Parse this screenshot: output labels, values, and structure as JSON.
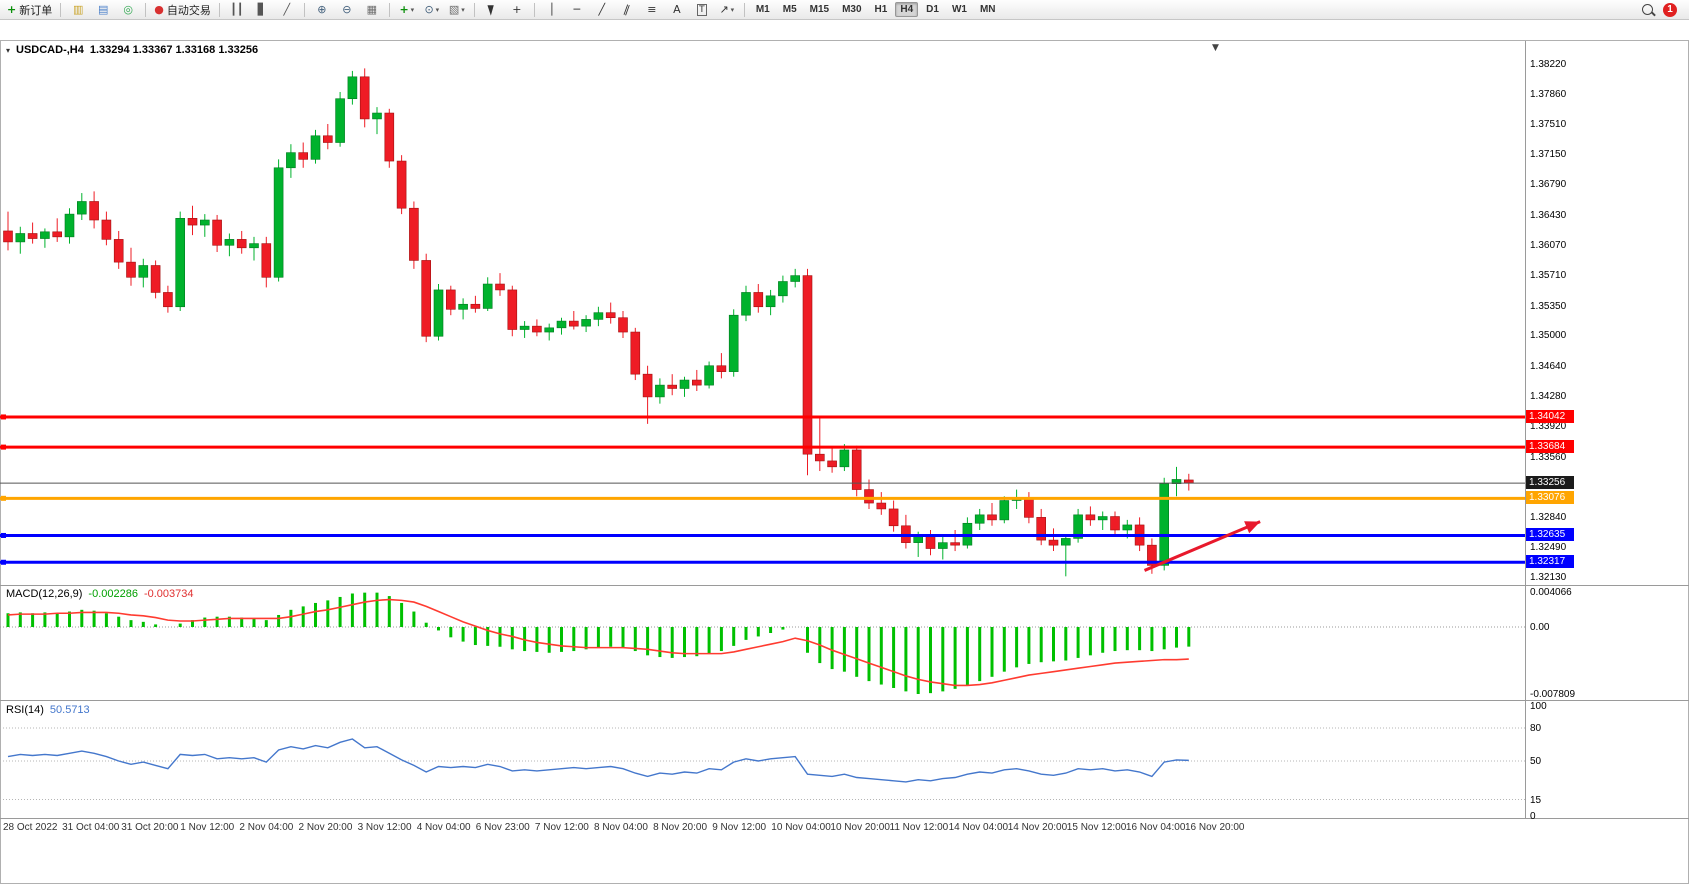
{
  "toolbar": {
    "groups": [
      [
        {
          "name": "new-order-button",
          "glyph": "+",
          "glyph_color": "#0a8f0a",
          "bold": true,
          "label": "新订单"
        }
      ],
      [
        {
          "name": "new-chart-icon",
          "glyph": "▥",
          "glyph_color": "#c9a227"
        },
        {
          "name": "profiles-icon",
          "glyph": "▤",
          "glyph_color": "#4a7fc9"
        },
        {
          "name": "market-watch-icon",
          "glyph": "◎",
          "glyph_color": "#2fa84f"
        }
      ],
      [
        {
          "name": "auto-trading-button",
          "glyph": "●",
          "glyph_color": "#d83030",
          "label": "自动交易"
        }
      ],
      [
        {
          "name": "bar-chart-type-icon",
          "glyph": "┃┃",
          "glyph_color": "#555555"
        },
        {
          "name": "candlestick-type-icon",
          "glyph": "▋",
          "glyph_color": "#555555"
        },
        {
          "name": "line-chart-type-icon",
          "glyph": "╱",
          "glyph_color": "#555555"
        }
      ],
      [
        {
          "name": "zoom-in-icon",
          "glyph": "⊕",
          "glyph_color": "#44617d"
        },
        {
          "name": "zoom-out-icon",
          "glyph": "⊖",
          "glyph_color": "#44617d"
        },
        {
          "name": "tile-windows-icon",
          "glyph": "▦",
          "glyph_color": "#6d6d6d"
        }
      ],
      [
        {
          "name": "indicators-icon",
          "glyph": "+",
          "glyph_color": "#0a8f0a",
          "bold": true,
          "caret": true
        },
        {
          "name": "periods-icon",
          "glyph": "⊙",
          "glyph_color": "#44617d",
          "caret": true
        },
        {
          "name": "templates-icon",
          "glyph": "▧",
          "glyph_color": "#6d6d6d",
          "caret": true
        }
      ],
      [
        {
          "name": "cursor-icon",
          "type": "cursor"
        },
        {
          "name": "crosshair-icon",
          "glyph": "+",
          "glyph_color": "#333333"
        }
      ],
      [
        {
          "name": "vertical-line-icon",
          "glyph": "│",
          "glyph_color": "#333333"
        },
        {
          "name": "horizontal-line-icon",
          "glyph": "─",
          "glyph_color": "#333333"
        },
        {
          "name": "trendline-icon",
          "glyph": "╱",
          "glyph_color": "#333333"
        },
        {
          "name": "channel-icon",
          "glyph": "∥",
          "glyph_color": "#333333",
          "tilt": true
        },
        {
          "name": "fibonacci-icon",
          "glyph": "≡",
          "glyph_color": "#333333"
        },
        {
          "name": "text-icon",
          "glyph": "A",
          "glyph_color": "#333333"
        },
        {
          "name": "text-label-icon",
          "glyph": "T",
          "glyph_color": "#333333",
          "boxed": true
        },
        {
          "name": "arrows-icon",
          "glyph": "↗",
          "glyph_color": "#333333",
          "caret": true
        }
      ]
    ],
    "timeframes": {
      "items": [
        "M1",
        "M5",
        "M15",
        "M30",
        "H1",
        "H4",
        "D1",
        "W1",
        "MN"
      ],
      "active": "H4"
    },
    "notification_badge": "1"
  },
  "chart": {
    "symbol_title": "USDCAD-,H4",
    "ohlc_values": "1.33294 1.33367 1.33168 1.33256",
    "shift_marker": "▼",
    "price_ticks": [
      "1.38220",
      "1.37860",
      "1.37510",
      "1.37150",
      "1.36790",
      "1.36430",
      "1.36070",
      "1.35710",
      "1.35350",
      "1.35000",
      "1.34640",
      "1.34280",
      "1.33920",
      "1.33560",
      "1.32840",
      "1.32490",
      "1.32130"
    ],
    "hlines": [
      {
        "label": "1.34042",
        "value": 1.34042,
        "color": "#ff0000",
        "width": 3,
        "handle": true
      },
      {
        "label": "1.33684",
        "value": 1.33684,
        "color": "#ff0000",
        "width": 3,
        "handle": true
      },
      {
        "label": "1.33256",
        "value": 1.33256,
        "color": "#555555",
        "width": 1,
        "bg": "#1b1b1b",
        "handle": false
      },
      {
        "label": "1.33076",
        "value": 1.33076,
        "color": "#ffa500",
        "width": 3,
        "handle": true
      },
      {
        "label": "1.32635",
        "value": 1.32635,
        "color": "#0000ff",
        "width": 3,
        "handle": true
      },
      {
        "label": "1.32317",
        "value": 1.32317,
        "color": "#0000ff",
        "width": 3,
        "handle": true
      }
    ],
    "arrow": {
      "x1_index": 92.4,
      "price1": 1.3222,
      "x2_index": 101.8,
      "price2": 1.328,
      "color": "#e8192c"
    },
    "time_labels": [
      "28 Oct 2022",
      "31 Oct 04:00",
      "31 Oct 20:00",
      "1 Nov 12:00",
      "2 Nov 04:00",
      "2 Nov 20:00",
      "3 Nov 12:00",
      "4 Nov 04:00",
      "6 Nov 23:00",
      "7 Nov 12:00",
      "8 Nov 04:00",
      "8 Nov 20:00",
      "9 Nov 12:00",
      "10 Nov 04:00",
      "10 Nov 20:00",
      "11 Nov 12:00",
      "14 Nov 04:00",
      "14 Nov 20:00",
      "15 Nov 12:00",
      "16 Nov 04:00",
      "16 Nov 20:00"
    ]
  },
  "macd": {
    "label": "MACD(12,26,9)",
    "value_main": "-0.002286",
    "value_signal": "-0.003734",
    "value_main_color": "#00a000",
    "value_signal_color": "#e03030",
    "axis": [
      "0.004066",
      "0.00",
      "-0.007809"
    ]
  },
  "rsi": {
    "label": "RSI(14)",
    "value": "50.5713",
    "value_color": "#4477cc",
    "levels": [
      100,
      80,
      50,
      15,
      0
    ]
  },
  "colors": {
    "bull": "#00b22d",
    "bear": "#ee1c25",
    "bull_edge": "#007a1f",
    "bear_edge": "#a01010",
    "macd_hist": "#00c000",
    "macd_signal": "#ff3b30",
    "rsi_line": "#4477cc"
  },
  "chart_data": [
    {
      "type": "candlestick",
      "name": "USDCAD H4",
      "ohlc": [
        [
          1.3625,
          1.3648,
          1.3602,
          1.3612
        ],
        [
          1.3612,
          1.363,
          1.3598,
          1.3622
        ],
        [
          1.3622,
          1.3635,
          1.361,
          1.3616
        ],
        [
          1.3616,
          1.3628,
          1.3605,
          1.3624
        ],
        [
          1.3624,
          1.364,
          1.3612,
          1.3618
        ],
        [
          1.3618,
          1.3652,
          1.361,
          1.3645
        ],
        [
          1.3645,
          1.367,
          1.3638,
          1.366
        ],
        [
          1.366,
          1.3672,
          1.3628,
          1.3638
        ],
        [
          1.3638,
          1.3648,
          1.3608,
          1.3615
        ],
        [
          1.3615,
          1.3625,
          1.358,
          1.3588
        ],
        [
          1.3588,
          1.3605,
          1.356,
          1.357
        ],
        [
          1.357,
          1.3592,
          1.3558,
          1.3584
        ],
        [
          1.3584,
          1.359,
          1.3545,
          1.3552
        ],
        [
          1.3552,
          1.356,
          1.3528,
          1.3535
        ],
        [
          1.3535,
          1.3648,
          1.353,
          1.364
        ],
        [
          1.364,
          1.3655,
          1.362,
          1.3632
        ],
        [
          1.3632,
          1.3645,
          1.3618,
          1.3638
        ],
        [
          1.3638,
          1.3644,
          1.36,
          1.3608
        ],
        [
          1.3608,
          1.3622,
          1.3595,
          1.3615
        ],
        [
          1.3615,
          1.3625,
          1.3598,
          1.3605
        ],
        [
          1.3605,
          1.3618,
          1.359,
          1.361
        ],
        [
          1.361,
          1.3618,
          1.3558,
          1.357
        ],
        [
          1.357,
          1.371,
          1.3565,
          1.37
        ],
        [
          1.37,
          1.3728,
          1.3688,
          1.3718
        ],
        [
          1.3718,
          1.373,
          1.37,
          1.371
        ],
        [
          1.371,
          1.3745,
          1.3705,
          1.3738
        ],
        [
          1.3738,
          1.3752,
          1.3722,
          1.373
        ],
        [
          1.373,
          1.379,
          1.3725,
          1.3782
        ],
        [
          1.3782,
          1.3815,
          1.3775,
          1.3808
        ],
        [
          1.3808,
          1.3818,
          1.3748,
          1.3758
        ],
        [
          1.3758,
          1.3772,
          1.374,
          1.3765
        ],
        [
          1.3765,
          1.377,
          1.37,
          1.3708
        ],
        [
          1.3708,
          1.3715,
          1.3645,
          1.3652
        ],
        [
          1.3652,
          1.366,
          1.358,
          1.359
        ],
        [
          1.359,
          1.3598,
          1.3493,
          1.35
        ],
        [
          1.35,
          1.3562,
          1.3495,
          1.3555
        ],
        [
          1.3555,
          1.356,
          1.3525,
          1.3532
        ],
        [
          1.3532,
          1.3545,
          1.352,
          1.3538
        ],
        [
          1.3538,
          1.3548,
          1.3528,
          1.3533
        ],
        [
          1.3533,
          1.357,
          1.353,
          1.3562
        ],
        [
          1.3562,
          1.3575,
          1.3548,
          1.3555
        ],
        [
          1.3555,
          1.356,
          1.35,
          1.3508
        ],
        [
          1.3508,
          1.3518,
          1.3498,
          1.3512
        ],
        [
          1.3512,
          1.352,
          1.35,
          1.3505
        ],
        [
          1.3505,
          1.3515,
          1.3495,
          1.351
        ],
        [
          1.351,
          1.3522,
          1.3502,
          1.3518
        ],
        [
          1.3518,
          1.353,
          1.3508,
          1.3512
        ],
        [
          1.3512,
          1.3525,
          1.3505,
          1.352
        ],
        [
          1.352,
          1.3535,
          1.3512,
          1.3528
        ],
        [
          1.3528,
          1.354,
          1.3515,
          1.3522
        ],
        [
          1.3522,
          1.353,
          1.3498,
          1.3505
        ],
        [
          1.3505,
          1.351,
          1.3448,
          1.3455
        ],
        [
          1.3455,
          1.3465,
          1.3396,
          1.3428
        ],
        [
          1.3428,
          1.345,
          1.342,
          1.3442
        ],
        [
          1.3442,
          1.3455,
          1.343,
          1.3438
        ],
        [
          1.3438,
          1.3452,
          1.3428,
          1.3448
        ],
        [
          1.3448,
          1.346,
          1.3435,
          1.3442
        ],
        [
          1.3442,
          1.347,
          1.3438,
          1.3465
        ],
        [
          1.3465,
          1.348,
          1.345,
          1.3458
        ],
        [
          1.3458,
          1.3532,
          1.3452,
          1.3525
        ],
        [
          1.3525,
          1.356,
          1.3518,
          1.3552
        ],
        [
          1.3552,
          1.3562,
          1.3528,
          1.3535
        ],
        [
          1.3535,
          1.3555,
          1.3525,
          1.3548
        ],
        [
          1.3548,
          1.3572,
          1.354,
          1.3565
        ],
        [
          1.3565,
          1.358,
          1.3558,
          1.3572
        ],
        [
          1.3572,
          1.358,
          1.3335,
          1.336
        ],
        [
          1.336,
          1.3405,
          1.334,
          1.3352
        ],
        [
          1.3352,
          1.3368,
          1.3338,
          1.3345
        ],
        [
          1.3345,
          1.3372,
          1.334,
          1.3365
        ],
        [
          1.3365,
          1.337,
          1.331,
          1.3318
        ],
        [
          1.3318,
          1.333,
          1.3295,
          1.3302
        ],
        [
          1.3302,
          1.3315,
          1.3288,
          1.3295
        ],
        [
          1.3295,
          1.3305,
          1.3268,
          1.3275
        ],
        [
          1.3275,
          1.3288,
          1.3248,
          1.3255
        ],
        [
          1.3255,
          1.3268,
          1.3238,
          1.3262
        ],
        [
          1.3262,
          1.327,
          1.324,
          1.3248
        ],
        [
          1.3248,
          1.3262,
          1.3235,
          1.3255
        ],
        [
          1.3255,
          1.327,
          1.3245,
          1.3252
        ],
        [
          1.3252,
          1.3285,
          1.3248,
          1.3278
        ],
        [
          1.3278,
          1.3295,
          1.327,
          1.3288
        ],
        [
          1.3288,
          1.3302,
          1.3275,
          1.3282
        ],
        [
          1.3282,
          1.331,
          1.3278,
          1.3305
        ],
        [
          1.3305,
          1.3318,
          1.3295,
          1.3308
        ],
        [
          1.3308,
          1.3315,
          1.3278,
          1.3285
        ],
        [
          1.3285,
          1.3295,
          1.3252,
          1.3258
        ],
        [
          1.3258,
          1.3272,
          1.3245,
          1.3252
        ],
        [
          1.3252,
          1.3265,
          1.3215,
          1.326
        ],
        [
          1.326,
          1.3295,
          1.3255,
          1.3288
        ],
        [
          1.3288,
          1.3298,
          1.3275,
          1.3282
        ],
        [
          1.3282,
          1.3292,
          1.327,
          1.3286
        ],
        [
          1.3286,
          1.3292,
          1.3262,
          1.327
        ],
        [
          1.327,
          1.3282,
          1.326,
          1.3276
        ],
        [
          1.3276,
          1.3285,
          1.3245,
          1.3252
        ],
        [
          1.3252,
          1.326,
          1.3218,
          1.3228
        ],
        [
          1.3228,
          1.3332,
          1.3222,
          1.3325
        ],
        [
          1.3325,
          1.3345,
          1.331,
          1.333
        ],
        [
          1.33294,
          1.33367,
          1.33168,
          1.33256
        ]
      ]
    },
    {
      "type": "macd",
      "name": "MACD(12,26,9)",
      "ylim": [
        -0.007809,
        0.004066
      ],
      "histogram": [
        0.0016,
        0.0017,
        0.0016,
        0.0017,
        0.0016,
        0.0018,
        0.002,
        0.0019,
        0.0016,
        0.0012,
        0.0008,
        0.0006,
        0.0003,
        0.0,
        0.0004,
        0.0008,
        0.0011,
        0.0012,
        0.0012,
        0.0011,
        0.001,
        0.0008,
        0.0014,
        0.002,
        0.0024,
        0.0028,
        0.0031,
        0.0035,
        0.0039,
        0.004,
        0.004,
        0.0036,
        0.0028,
        0.0018,
        0.0005,
        -0.0004,
        -0.0012,
        -0.0017,
        -0.0021,
        -0.0022,
        -0.0023,
        -0.0026,
        -0.0028,
        -0.0029,
        -0.003,
        -0.0029,
        -0.0028,
        -0.0026,
        -0.0024,
        -0.0023,
        -0.0024,
        -0.0028,
        -0.0033,
        -0.0035,
        -0.0036,
        -0.0035,
        -0.0034,
        -0.0031,
        -0.0028,
        -0.0022,
        -0.0015,
        -0.0011,
        -0.0007,
        -0.0003,
        0.0,
        -0.003,
        -0.0042,
        -0.0049,
        -0.0052,
        -0.0058,
        -0.0063,
        -0.0067,
        -0.0071,
        -0.0075,
        -0.0078,
        -0.0077,
        -0.0075,
        -0.0072,
        -0.0068,
        -0.0063,
        -0.0058,
        -0.0052,
        -0.0047,
        -0.0043,
        -0.0041,
        -0.004,
        -0.0039,
        -0.0036,
        -0.0033,
        -0.003,
        -0.0028,
        -0.0027,
        -0.0027,
        -0.0028,
        -0.0026,
        -0.0024,
        -0.002286
      ],
      "signal": [
        0.0014,
        0.0015,
        0.0015,
        0.0015,
        0.0016,
        0.0016,
        0.0017,
        0.0017,
        0.0017,
        0.0016,
        0.0014,
        0.0013,
        0.0011,
        0.0008,
        0.0007,
        0.0007,
        0.0008,
        0.0009,
        0.001,
        0.001,
        0.001,
        0.001,
        0.001,
        0.0012,
        0.0015,
        0.0018,
        0.002,
        0.0023,
        0.0026,
        0.0029,
        0.0031,
        0.0032,
        0.0031,
        0.0029,
        0.0024,
        0.0018,
        0.0012,
        0.0006,
        0.0001,
        -0.0004,
        -0.0008,
        -0.0011,
        -0.0015,
        -0.0018,
        -0.002,
        -0.0022,
        -0.0023,
        -0.0024,
        -0.0024,
        -0.0024,
        -0.0024,
        -0.0025,
        -0.0026,
        -0.0028,
        -0.003,
        -0.0031,
        -0.0031,
        -0.0031,
        -0.0031,
        -0.0029,
        -0.0026,
        -0.0023,
        -0.002,
        -0.0017,
        -0.0013,
        -0.0016,
        -0.0021,
        -0.0027,
        -0.0032,
        -0.0037,
        -0.0042,
        -0.0047,
        -0.0052,
        -0.0057,
        -0.0061,
        -0.0064,
        -0.0066,
        -0.0068,
        -0.0068,
        -0.0067,
        -0.0065,
        -0.0062,
        -0.0059,
        -0.0056,
        -0.0054,
        -0.0052,
        -0.005,
        -0.0048,
        -0.0046,
        -0.0044,
        -0.0042,
        -0.0041,
        -0.004,
        -0.0039,
        -0.0038,
        -0.0038,
        -0.003734
      ]
    },
    {
      "type": "line",
      "name": "RSI(14)",
      "ylim": [
        0,
        100
      ],
      "values": [
        54,
        56,
        55,
        56,
        55,
        57,
        59,
        57,
        54,
        50,
        47,
        49,
        46,
        43,
        56,
        55,
        56,
        52,
        53,
        52,
        53,
        49,
        60,
        63,
        61,
        64,
        62,
        67,
        70,
        62,
        63,
        57,
        51,
        46,
        40,
        45,
        44,
        45,
        44,
        47,
        45,
        41,
        42,
        41,
        42,
        43,
        44,
        43,
        44,
        45,
        43,
        39,
        36,
        39,
        38,
        40,
        39,
        43,
        42,
        49,
        52,
        50,
        52,
        53,
        54,
        38,
        37,
        36,
        38,
        35,
        34,
        33,
        32,
        31,
        33,
        32,
        34,
        35,
        38,
        40,
        39,
        42,
        43,
        41,
        38,
        37,
        39,
        43,
        42,
        43,
        41,
        42,
        40,
        36,
        49,
        51,
        50.5713
      ]
    }
  ]
}
